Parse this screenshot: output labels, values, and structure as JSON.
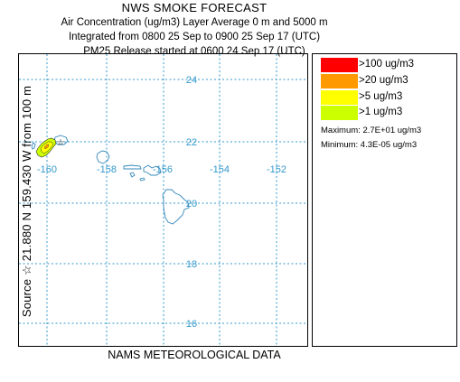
{
  "header": {
    "title": "NWS SMOKE FORECAST",
    "line1": "Air Concentration (ug/m3) Layer Average    0 m and  5000 m",
    "line2": "Integrated from 0800 25 Sep to 0900 25 Sep 17 (UTC)",
    "line3": "PM25 Release started at 0600 24 Sep 17 (UTC)"
  },
  "side_label": "Source ☆  21.880  N 159.430  W      from  100 m",
  "footer": "NAMS METEOROLOGICAL DATA",
  "map": {
    "longitudes": [
      "-160",
      "-158",
      "-156",
      "-154",
      "-152"
    ],
    "latitudes": [
      "24",
      "22",
      "20",
      "18",
      "16"
    ],
    "source_marker": "star"
  },
  "legend": {
    "items": [
      {
        "label": ">100 ug/m3",
        "color": "#ff0000"
      },
      {
        "label": ">20 ug/m3",
        "color": "#ff9900"
      },
      {
        "label": ">5 ug/m3",
        "color": "#ffff00"
      },
      {
        "label": ">1 ug/m3",
        "color": "#ccff00"
      }
    ],
    "maximum": "Maximum: 2.7E+01 ug/m3",
    "minimum": "Minimum: 4.3E-05 ug/m3"
  },
  "colors": {
    "grid": "#3399cc",
    "coast": "#3388bb",
    "label": "#3399cc"
  }
}
